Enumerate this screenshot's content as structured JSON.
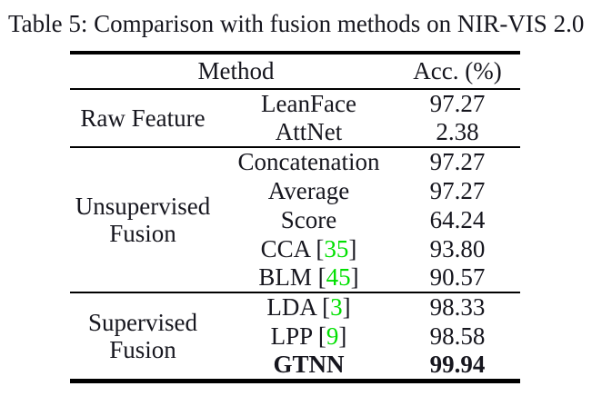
{
  "caption": "Table 5: Comparison with fusion methods on NIR-VIS 2.0",
  "table": {
    "headers": {
      "method": "Method",
      "acc": "Acc. (%)"
    },
    "citation_color": "#00e000",
    "groups": [
      {
        "label_line1": "Raw Feature",
        "label_line2": "",
        "rows": [
          {
            "method": "LeanFace",
            "acc": "97.27"
          },
          {
            "method": "AttNet",
            "acc": "2.38"
          }
        ]
      },
      {
        "label_line1": "Unsupervised",
        "label_line2": "Fusion",
        "rows": [
          {
            "method": "Concatenation",
            "acc": "97.27"
          },
          {
            "method": "Average",
            "acc": "97.27"
          },
          {
            "method": "Score",
            "acc": "64.24"
          },
          {
            "method_prefix": "CCA [",
            "cite": "35",
            "method_suffix": "]",
            "acc": "93.80"
          },
          {
            "method_prefix": "BLM [",
            "cite": "45",
            "method_suffix": "]",
            "acc": "90.57"
          }
        ]
      },
      {
        "label_line1": "Supervised",
        "label_line2": "Fusion",
        "rows": [
          {
            "method_prefix": "LDA [",
            "cite": "3",
            "method_suffix": "]",
            "acc": "98.33"
          },
          {
            "method_prefix": "LPP [",
            "cite": "9",
            "method_suffix": "]",
            "acc": "98.58"
          },
          {
            "method": "GTNN",
            "acc": "99.94"
          }
        ]
      }
    ]
  }
}
